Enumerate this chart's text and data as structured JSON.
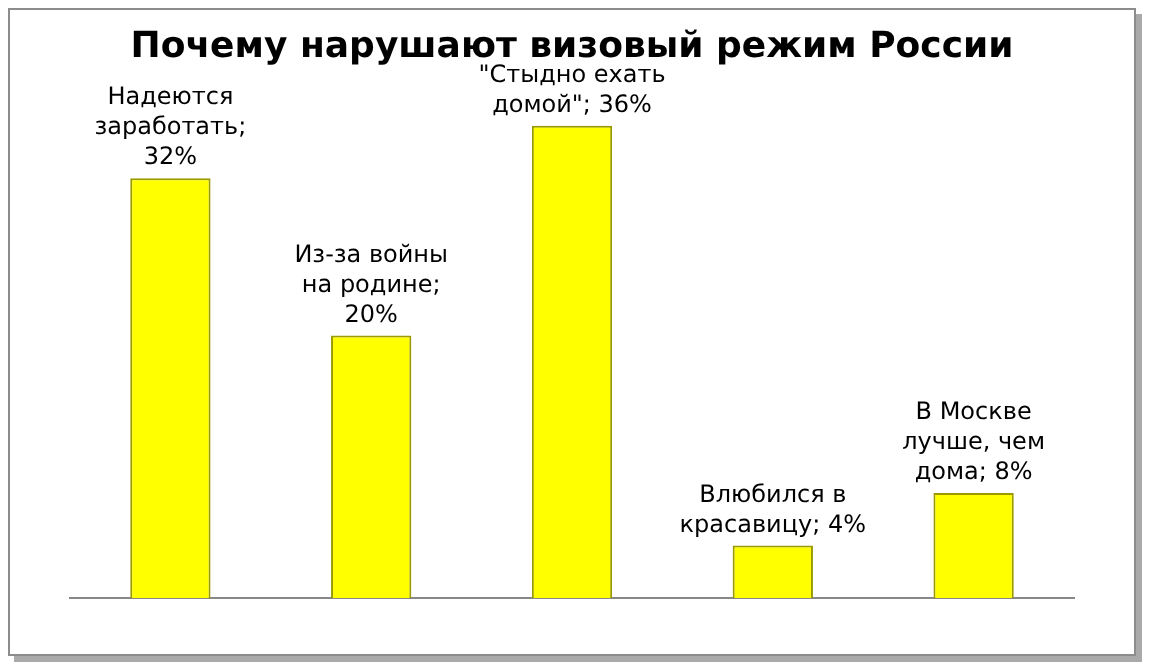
{
  "chart_data": {
    "type": "bar",
    "title": "Почему нарушают визовый режим России",
    "categories": [
      null,
      null,
      null,
      null,
      null
    ],
    "values": [
      32,
      20,
      36,
      4,
      8
    ],
    "value_labels": [
      "Надеются заработать; 32%",
      "Из-за войны на родине; 20%",
      "\"Стыдно ехать домой\"; 36%",
      "Влюбился в красавицу; 4%",
      "В Москве лучше, чем дома; 8%"
    ],
    "color": "#ffff00",
    "grid": false,
    "legend": false
  }
}
